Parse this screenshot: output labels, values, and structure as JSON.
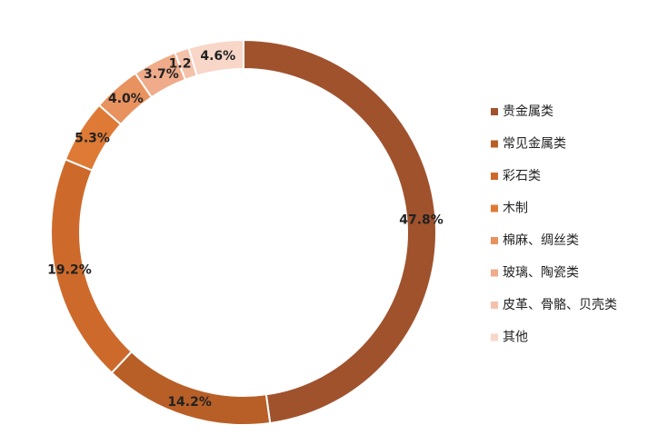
{
  "chart_data": {
    "type": "donut",
    "categories": [
      "贵金属类",
      "常见金属类",
      "彩石类",
      "木制",
      "棉麻、绸丝类",
      "玻璃、陶瓷类",
      "皮革、骨骼、贝壳类",
      "其他"
    ],
    "values": [
      47.8,
      14.2,
      19.2,
      5.3,
      4.0,
      3.7,
      1.2,
      4.6
    ],
    "value_labels": [
      "47.8%",
      "14.2%",
      "19.2%",
      "5.3%",
      "4.0%",
      "3.7%",
      "1.2%",
      "4.6%"
    ],
    "colors": [
      "#a0522d",
      "#b85f27",
      "#cd6a2b",
      "#de7a35",
      "#e8925f",
      "#efab8a",
      "#f4c2aa",
      "#f8d6c8"
    ],
    "legend": "right"
  }
}
